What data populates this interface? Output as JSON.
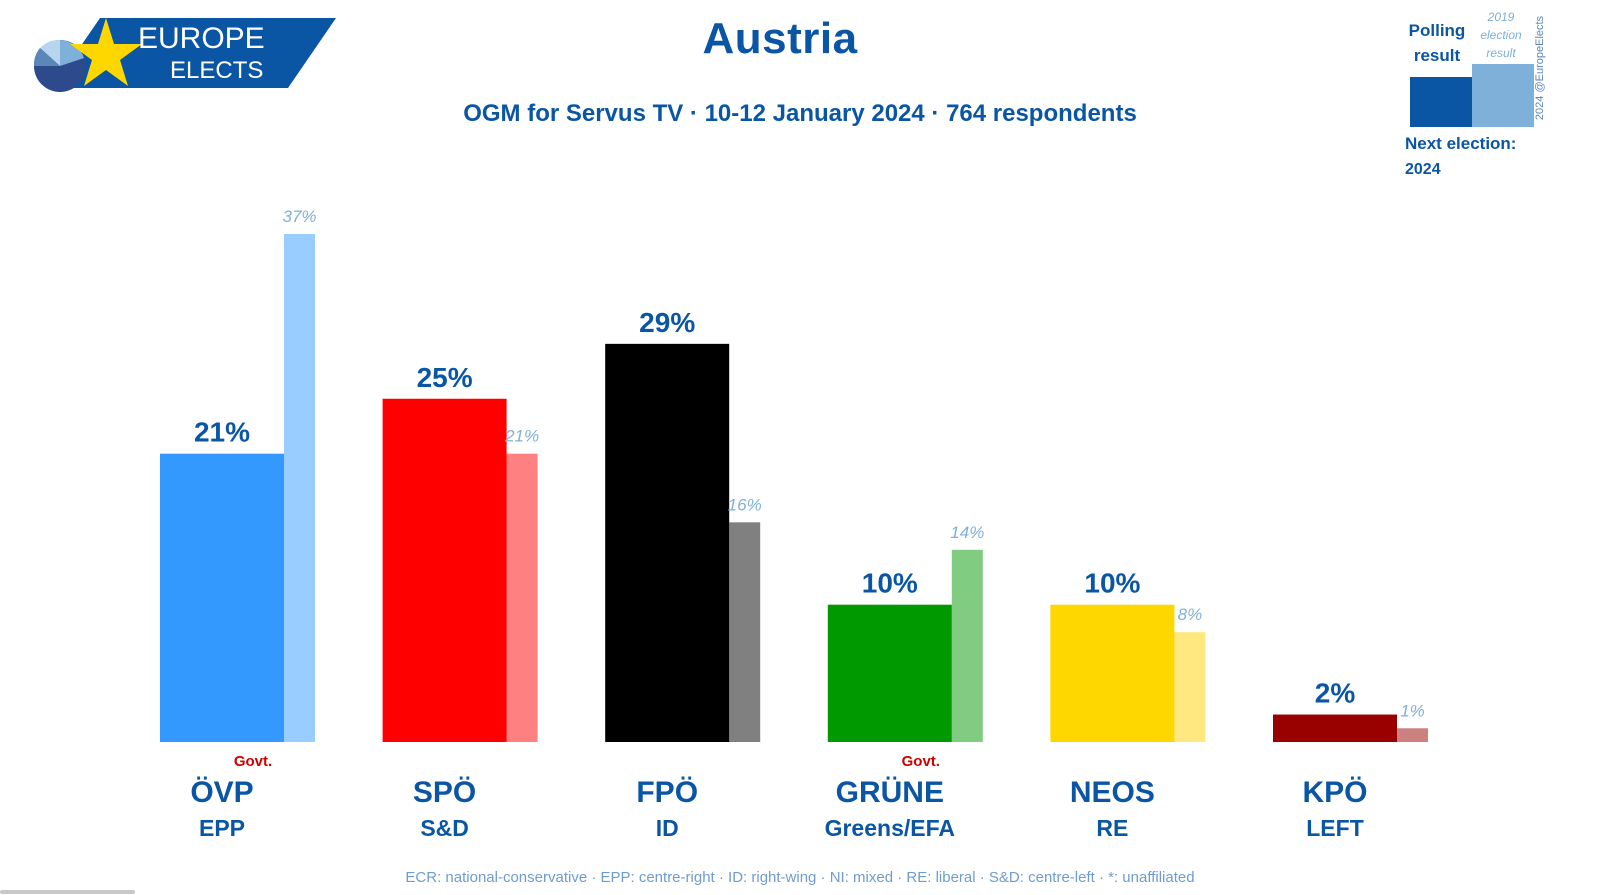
{
  "brand": {
    "line1": "EUROPE",
    "line2": "ELECTS"
  },
  "legend": {
    "polling_line1": "Polling",
    "polling_line2": "result",
    "prev_line1": "2019",
    "prev_line2": "election",
    "prev_line3": "result",
    "copyright": "2024 @EuropeElects",
    "next_label": "Next election:",
    "next_year": "2024",
    "polling_color": "#0a56a5",
    "prev_color": "#7fb0d9"
  },
  "footer": "ECR: national-conservative · EPP: centre-right · ID: right-wing · NI: mixed · RE: liberal · S&D: centre-left · *: unaffiliated",
  "chart_data": {
    "type": "bar",
    "title": "Austria",
    "subtitle": "OGM for Servus TV · 10-12 January 2024 · 764 respondents",
    "ylim": [
      0,
      40
    ],
    "grid": false,
    "unit": "%",
    "categories": [
      "ÖVP",
      "SPÖ",
      "FPÖ",
      "GRÜNE",
      "NEOS",
      "KPÖ"
    ],
    "groups": [
      "EPP",
      "S&D",
      "ID",
      "Greens/EFA",
      "RE",
      "LEFT"
    ],
    "govt_tag": "Govt.",
    "in_government": [
      true,
      false,
      false,
      true,
      false,
      false
    ],
    "series": [
      {
        "values": [
          21,
          25,
          29,
          10,
          10,
          2
        ],
        "labels": [
          "21%",
          "25%",
          "29%",
          "10%",
          "10%",
          "2%"
        ],
        "colors": [
          "#3399ff",
          "#ff0000",
          "#000000",
          "#009900",
          "#ffd700",
          "#990000"
        ]
      },
      {
        "values": [
          37,
          21,
          16,
          14,
          8,
          1
        ],
        "labels": [
          "37%",
          "21%",
          "16%",
          "14%",
          "8%",
          "1%"
        ],
        "colors": [
          "#99ccff",
          "#ff8080",
          "#808080",
          "#80cc80",
          "#ffe880",
          "#cc8080"
        ]
      }
    ]
  }
}
